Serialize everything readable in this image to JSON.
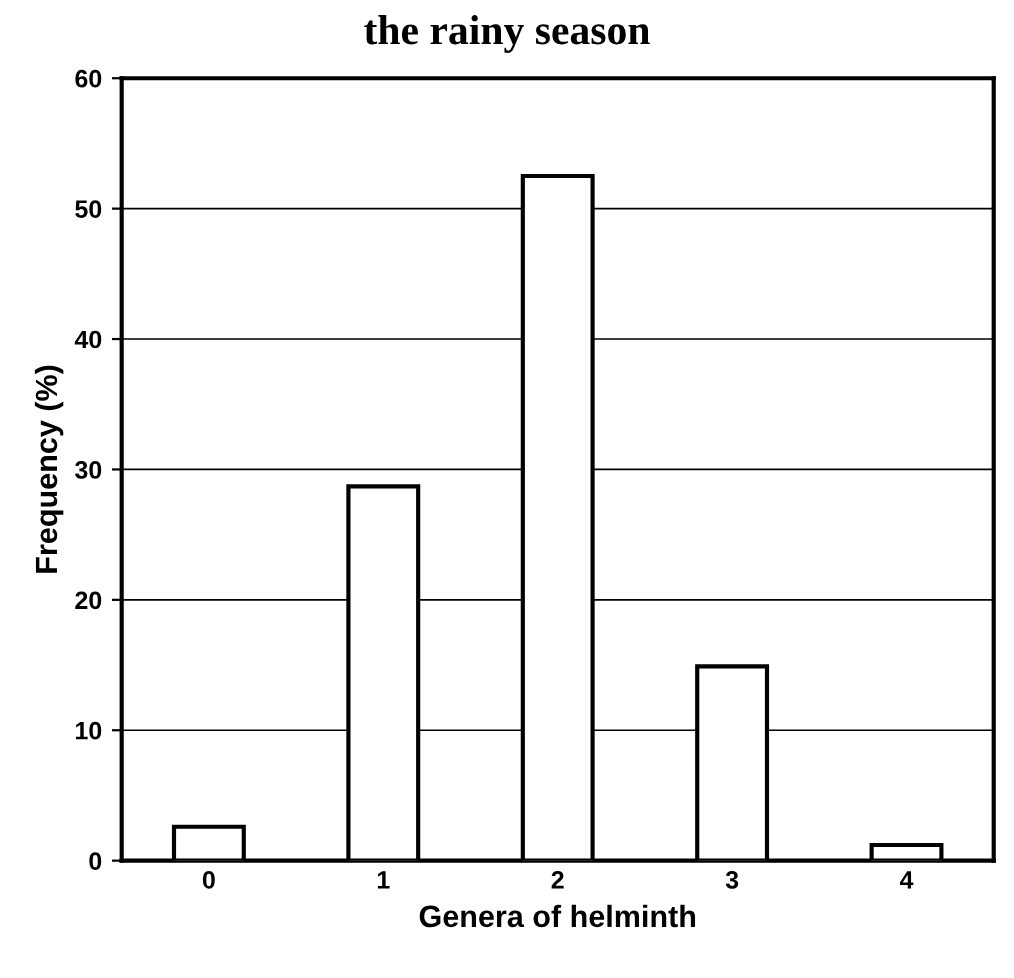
{
  "chart_data": {
    "type": "bar",
    "title": "the rainy season",
    "xlabel": "Genera of helminth",
    "ylabel": "Frequency (%)",
    "categories": [
      "0",
      "1",
      "2",
      "3",
      "4"
    ],
    "values": [
      2.6,
      28.7,
      52.5,
      14.9,
      1.2
    ],
    "color": "#ffffff",
    "ylim": [
      0,
      60
    ],
    "yticks": [
      0,
      10,
      20,
      30,
      40,
      50,
      60
    ],
    "grid": "y"
  }
}
